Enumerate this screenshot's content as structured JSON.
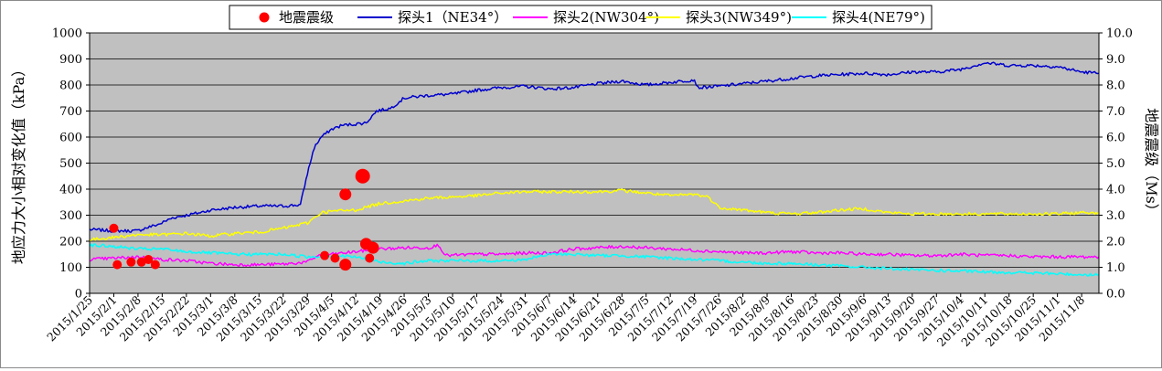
{
  "chart_data": {
    "type": "line",
    "title": "",
    "legend": {
      "placement": "top-center",
      "entries": [
        {
          "name": "地震震级",
          "color": "#ff0000",
          "marker": "circle"
        },
        {
          "name": "探头1（NE34°）",
          "color": "#0000cc",
          "marker": "line"
        },
        {
          "name": "探头2(NW304°)",
          "color": "#ff00ff",
          "marker": "line"
        },
        {
          "name": "探头3(NW349°)",
          "color": "#ffff00",
          "marker": "line"
        },
        {
          "name": "探头4(NE79°)",
          "color": "#00ffff",
          "marker": "line"
        }
      ]
    },
    "ylabel_left": "地应力大小相对变化值（kPa）",
    "ylabel_right": "地震震级（Ms）",
    "ylim_left": [
      0,
      1000
    ],
    "ylim_right": [
      0,
      10
    ],
    "yticks_left": [
      "0",
      "100",
      "200",
      "300",
      "400",
      "500",
      "600",
      "700",
      "800",
      "900",
      "1000"
    ],
    "yticks_right": [
      "0.0",
      "1.0",
      "2.0",
      "3.0",
      "4.0",
      "5.0",
      "6.0",
      "7.0",
      "8.0",
      "9.0",
      "10.0"
    ],
    "x_range": [
      "2015-01-25",
      "2015-11-13"
    ],
    "xticks": [
      "2015/1/25",
      "2015/2/1",
      "2015/2/8",
      "2015/2/15",
      "2015/2/22",
      "2015/3/1",
      "2015/3/8",
      "2015/3/15",
      "2015/3/22",
      "2015/3/29",
      "2015/4/5",
      "2015/4/12",
      "2015/4/19",
      "2015/4/26",
      "2015/5/3",
      "2015/5/10",
      "2015/5/17",
      "2015/5/24",
      "2015/5/31",
      "2015/6/7",
      "2015/6/14",
      "2015/6/21",
      "2015/6/28",
      "2015/7/5",
      "2015/7/12",
      "2015/7/19",
      "2015/7/26",
      "2015/8/2",
      "2015/8/9",
      "2015/8/16",
      "2015/8/23",
      "2015/8/30",
      "2015/9/6",
      "2015/9/13",
      "2015/9/20",
      "2015/9/27",
      "2015/10/4",
      "2015/10/11",
      "2015/10/18",
      "2015/10/25",
      "2015/11/1",
      "2015/11/8"
    ],
    "grid": {
      "horizontal": true,
      "vertical": false
    },
    "plot_background": "#c0c0c0",
    "series": [
      {
        "name": "探头1（NE34°）",
        "color": "#0000cc",
        "axis": "left",
        "points": [
          [
            "2015-01-25",
            245
          ],
          [
            "2015-02-01",
            240
          ],
          [
            "2015-02-08",
            240
          ],
          [
            "2015-02-10",
            250
          ],
          [
            "2015-02-14",
            265
          ],
          [
            "2015-02-18",
            290
          ],
          [
            "2015-02-22",
            300
          ],
          [
            "2015-02-26",
            310
          ],
          [
            "2015-03-01",
            320
          ],
          [
            "2015-03-05",
            325
          ],
          [
            "2015-03-08",
            330
          ],
          [
            "2015-03-15",
            335
          ],
          [
            "2015-03-22",
            335
          ],
          [
            "2015-03-27",
            340
          ],
          [
            "2015-03-29",
            460
          ],
          [
            "2015-03-31",
            560
          ],
          [
            "2015-04-02",
            600
          ],
          [
            "2015-04-05",
            630
          ],
          [
            "2015-04-08",
            645
          ],
          [
            "2015-04-12",
            650
          ],
          [
            "2015-04-15",
            655
          ],
          [
            "2015-04-18",
            700
          ],
          [
            "2015-04-22",
            710
          ],
          [
            "2015-04-26",
            750
          ],
          [
            "2015-05-03",
            760
          ],
          [
            "2015-05-10",
            765
          ],
          [
            "2015-05-17",
            780
          ],
          [
            "2015-05-24",
            790
          ],
          [
            "2015-05-31",
            795
          ],
          [
            "2015-06-07",
            785
          ],
          [
            "2015-06-14",
            790
          ],
          [
            "2015-06-21",
            805
          ],
          [
            "2015-06-28",
            815
          ],
          [
            "2015-07-05",
            800
          ],
          [
            "2015-07-12",
            810
          ],
          [
            "2015-07-19",
            820
          ],
          [
            "2015-07-20",
            790
          ],
          [
            "2015-07-26",
            795
          ],
          [
            "2015-08-02",
            805
          ],
          [
            "2015-08-09",
            815
          ],
          [
            "2015-08-16",
            825
          ],
          [
            "2015-08-23",
            835
          ],
          [
            "2015-08-30",
            840
          ],
          [
            "2015-09-06",
            845
          ],
          [
            "2015-09-13",
            840
          ],
          [
            "2015-09-20",
            850
          ],
          [
            "2015-09-27",
            850
          ],
          [
            "2015-10-04",
            860
          ],
          [
            "2015-10-11",
            885
          ],
          [
            "2015-10-18",
            875
          ],
          [
            "2015-10-25",
            875
          ],
          [
            "2015-11-01",
            870
          ],
          [
            "2015-11-08",
            850
          ],
          [
            "2015-11-13",
            845
          ]
        ]
      },
      {
        "name": "探头2(NW304°)",
        "color": "#ff00ff",
        "axis": "left",
        "points": [
          [
            "2015-01-25",
            130
          ],
          [
            "2015-02-01",
            135
          ],
          [
            "2015-02-08",
            140
          ],
          [
            "2015-02-15",
            130
          ],
          [
            "2015-02-22",
            125
          ],
          [
            "2015-03-01",
            115
          ],
          [
            "2015-03-08",
            110
          ],
          [
            "2015-03-15",
            110
          ],
          [
            "2015-03-22",
            112
          ],
          [
            "2015-03-29",
            120
          ],
          [
            "2015-04-01",
            145
          ],
          [
            "2015-04-05",
            150
          ],
          [
            "2015-04-12",
            160
          ],
          [
            "2015-04-19",
            170
          ],
          [
            "2015-04-26",
            175
          ],
          [
            "2015-05-03",
            175
          ],
          [
            "2015-05-06",
            185
          ],
          [
            "2015-05-08",
            145
          ],
          [
            "2015-05-17",
            150
          ],
          [
            "2015-05-24",
            150
          ],
          [
            "2015-05-31",
            155
          ],
          [
            "2015-06-07",
            155
          ],
          [
            "2015-06-14",
            170
          ],
          [
            "2015-06-21",
            175
          ],
          [
            "2015-06-28",
            180
          ],
          [
            "2015-07-05",
            175
          ],
          [
            "2015-07-12",
            170
          ],
          [
            "2015-07-19",
            165
          ],
          [
            "2015-07-26",
            160
          ],
          [
            "2015-08-02",
            155
          ],
          [
            "2015-08-09",
            155
          ],
          [
            "2015-08-16",
            160
          ],
          [
            "2015-08-23",
            155
          ],
          [
            "2015-08-30",
            155
          ],
          [
            "2015-09-06",
            150
          ],
          [
            "2015-09-13",
            150
          ],
          [
            "2015-09-20",
            145
          ],
          [
            "2015-09-27",
            145
          ],
          [
            "2015-10-04",
            150
          ],
          [
            "2015-10-11",
            145
          ],
          [
            "2015-10-18",
            145
          ],
          [
            "2015-10-25",
            140
          ],
          [
            "2015-11-01",
            140
          ],
          [
            "2015-11-08",
            140
          ],
          [
            "2015-11-13",
            140
          ]
        ]
      },
      {
        "name": "探头3(NW349°)",
        "color": "#ffff00",
        "axis": "left",
        "points": [
          [
            "2015-01-25",
            205
          ],
          [
            "2015-02-01",
            215
          ],
          [
            "2015-02-08",
            225
          ],
          [
            "2015-02-15",
            225
          ],
          [
            "2015-02-22",
            230
          ],
          [
            "2015-03-01",
            220
          ],
          [
            "2015-03-08",
            230
          ],
          [
            "2015-03-15",
            235
          ],
          [
            "2015-03-22",
            250
          ],
          [
            "2015-03-29",
            270
          ],
          [
            "2015-04-02",
            310
          ],
          [
            "2015-04-05",
            315
          ],
          [
            "2015-04-12",
            320
          ],
          [
            "2015-04-19",
            345
          ],
          [
            "2015-04-26",
            355
          ],
          [
            "2015-05-03",
            365
          ],
          [
            "2015-05-10",
            370
          ],
          [
            "2015-05-17",
            375
          ],
          [
            "2015-05-24",
            385
          ],
          [
            "2015-05-31",
            390
          ],
          [
            "2015-06-07",
            390
          ],
          [
            "2015-06-14",
            390
          ],
          [
            "2015-06-21",
            390
          ],
          [
            "2015-06-28",
            395
          ],
          [
            "2015-07-05",
            385
          ],
          [
            "2015-07-12",
            375
          ],
          [
            "2015-07-19",
            380
          ],
          [
            "2015-07-23",
            370
          ],
          [
            "2015-07-26",
            330
          ],
          [
            "2015-08-02",
            320
          ],
          [
            "2015-08-09",
            310
          ],
          [
            "2015-08-16",
            305
          ],
          [
            "2015-08-23",
            310
          ],
          [
            "2015-08-30",
            320
          ],
          [
            "2015-09-06",
            325
          ],
          [
            "2015-09-13",
            310
          ],
          [
            "2015-09-20",
            305
          ],
          [
            "2015-09-27",
            305
          ],
          [
            "2015-10-04",
            305
          ],
          [
            "2015-10-11",
            305
          ],
          [
            "2015-10-18",
            305
          ],
          [
            "2015-10-25",
            305
          ],
          [
            "2015-11-01",
            305
          ],
          [
            "2015-11-08",
            310
          ],
          [
            "2015-11-13",
            310
          ]
        ]
      },
      {
        "name": "探头4(NE79°)",
        "color": "#00ffff",
        "axis": "left",
        "points": [
          [
            "2015-01-25",
            185
          ],
          [
            "2015-02-01",
            180
          ],
          [
            "2015-02-08",
            170
          ],
          [
            "2015-02-15",
            170
          ],
          [
            "2015-02-22",
            160
          ],
          [
            "2015-03-01",
            155
          ],
          [
            "2015-03-08",
            150
          ],
          [
            "2015-03-15",
            150
          ],
          [
            "2015-03-22",
            150
          ],
          [
            "2015-03-29",
            140
          ],
          [
            "2015-04-05",
            145
          ],
          [
            "2015-04-12",
            140
          ],
          [
            "2015-04-19",
            120
          ],
          [
            "2015-04-26",
            115
          ],
          [
            "2015-05-03",
            125
          ],
          [
            "2015-05-10",
            125
          ],
          [
            "2015-05-17",
            125
          ],
          [
            "2015-05-24",
            125
          ],
          [
            "2015-05-31",
            130
          ],
          [
            "2015-06-07",
            150
          ],
          [
            "2015-06-14",
            150
          ],
          [
            "2015-06-21",
            145
          ],
          [
            "2015-06-28",
            145
          ],
          [
            "2015-07-05",
            140
          ],
          [
            "2015-07-12",
            135
          ],
          [
            "2015-07-19",
            130
          ],
          [
            "2015-07-26",
            125
          ],
          [
            "2015-08-02",
            120
          ],
          [
            "2015-08-09",
            115
          ],
          [
            "2015-08-16",
            115
          ],
          [
            "2015-08-23",
            110
          ],
          [
            "2015-08-30",
            105
          ],
          [
            "2015-09-06",
            100
          ],
          [
            "2015-09-13",
            95
          ],
          [
            "2015-09-20",
            90
          ],
          [
            "2015-09-27",
            88
          ],
          [
            "2015-10-04",
            85
          ],
          [
            "2015-10-11",
            82
          ],
          [
            "2015-10-18",
            80
          ],
          [
            "2015-10-25",
            78
          ],
          [
            "2015-11-01",
            75
          ],
          [
            "2015-11-08",
            72
          ],
          [
            "2015-11-13",
            72
          ]
        ]
      }
    ],
    "earthquakes": {
      "name": "地震震级",
      "color": "#ff0000",
      "axis": "right",
      "points": [
        [
          "2015-02-01",
          2.5,
          "small"
        ],
        [
          "2015-02-02",
          1.1,
          "small"
        ],
        [
          "2015-02-06",
          1.2,
          "small"
        ],
        [
          "2015-02-09",
          1.2,
          "small"
        ],
        [
          "2015-02-11",
          1.3,
          "small"
        ],
        [
          "2015-02-13",
          1.1,
          "small"
        ],
        [
          "2015-04-03",
          1.45,
          "small"
        ],
        [
          "2015-04-06",
          1.35,
          "small"
        ],
        [
          "2015-04-09",
          1.1,
          "medium"
        ],
        [
          "2015-04-09",
          3.8,
          "medium"
        ],
        [
          "2015-04-14",
          4.5,
          "large"
        ],
        [
          "2015-04-15",
          1.9,
          "medium"
        ],
        [
          "2015-04-16",
          1.35,
          "small"
        ],
        [
          "2015-04-17",
          1.75,
          "medium"
        ]
      ]
    }
  }
}
